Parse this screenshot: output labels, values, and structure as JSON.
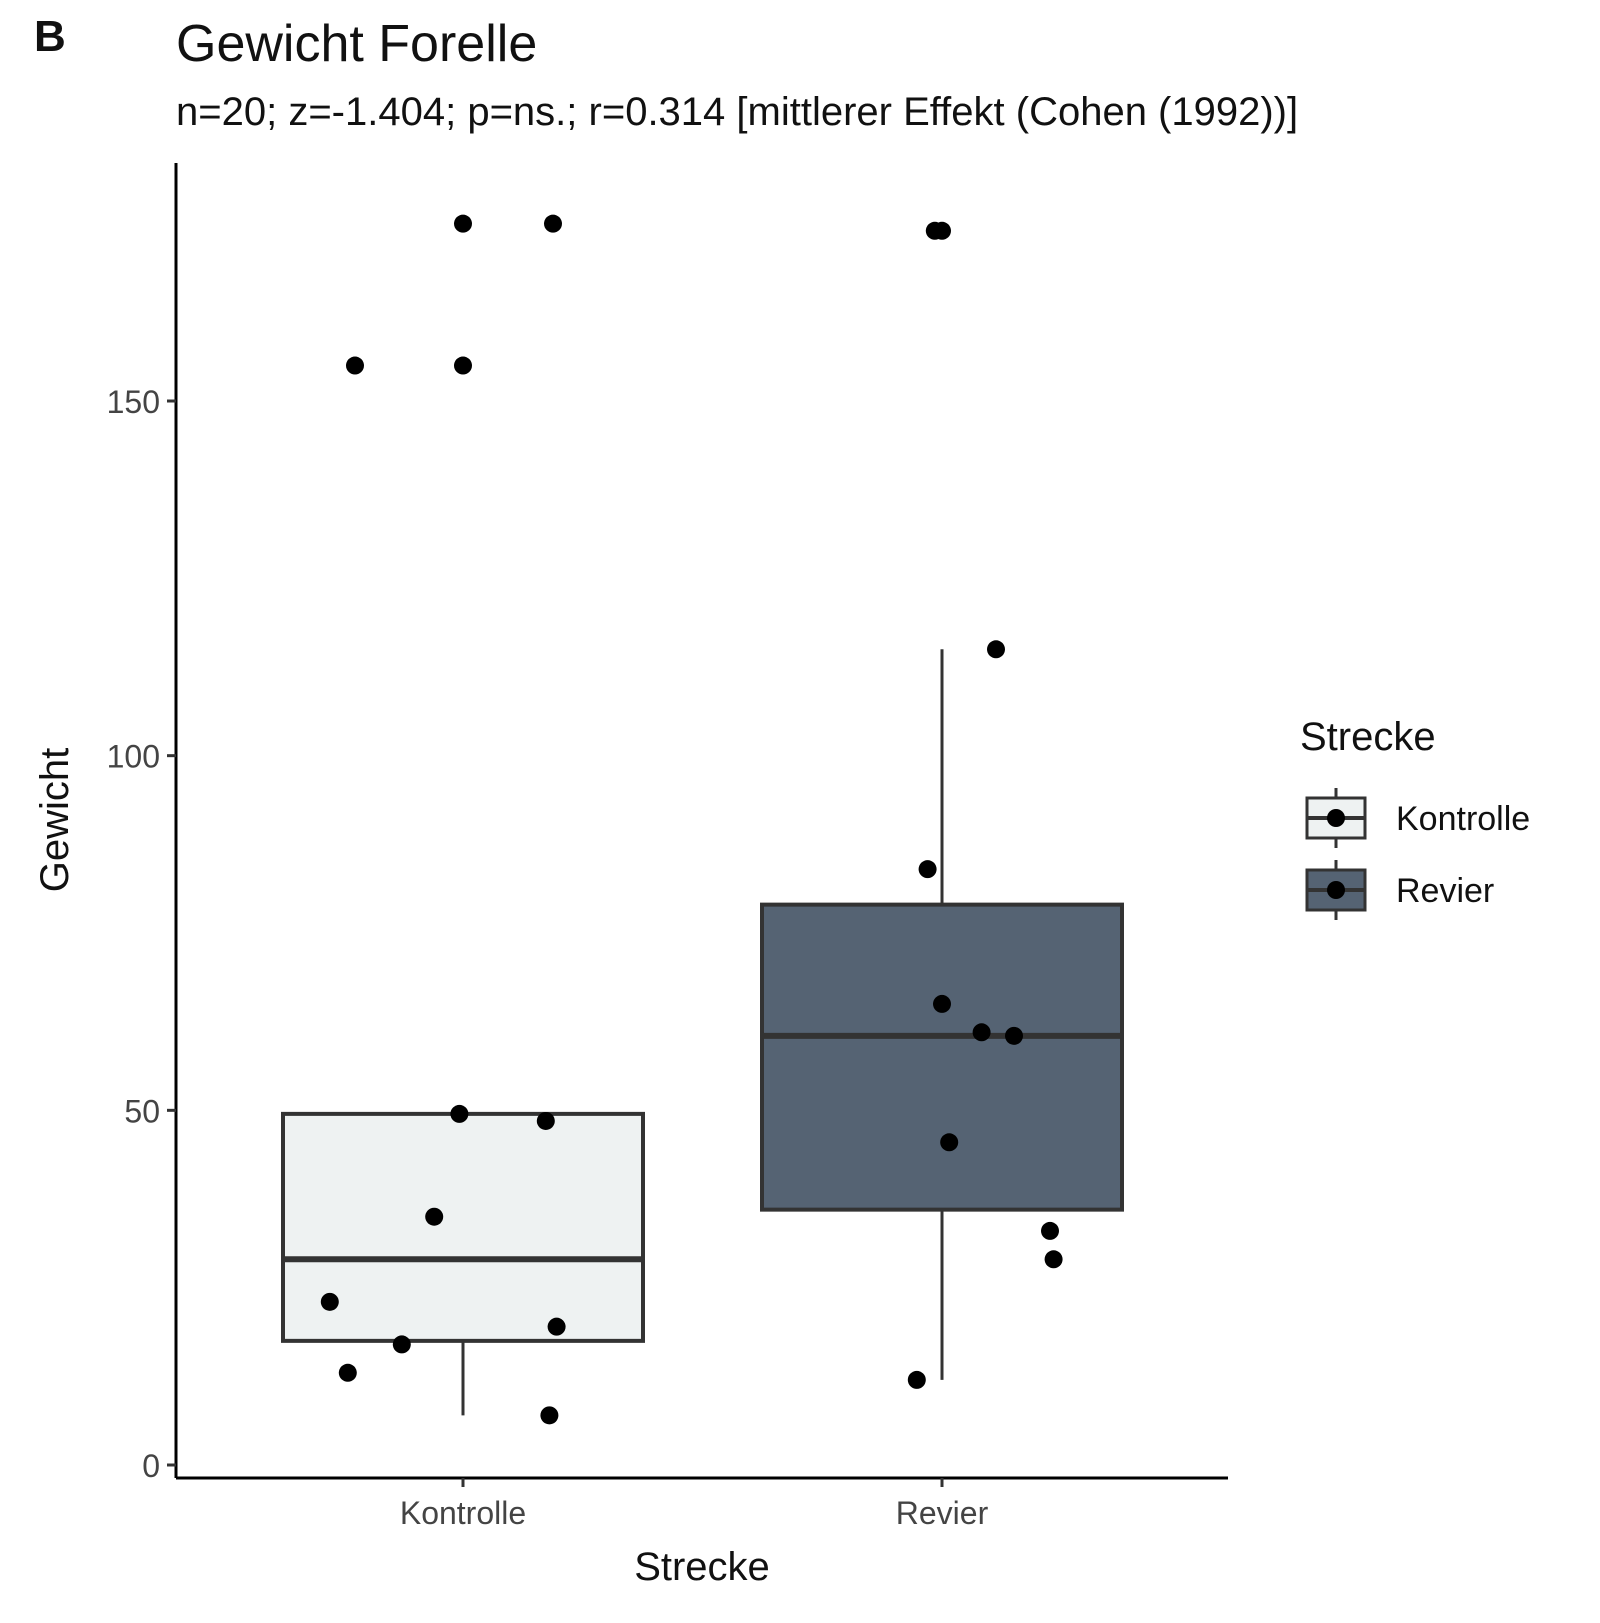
{
  "panel_label": "B",
  "chart_data": {
    "type": "boxplot",
    "title": "Gewicht Forelle",
    "subtitle": "n=20; z=-1.404; p=ns.; r=0.314 [mittlerer Effekt (Cohen (1992))]",
    "xlabel": "Strecke",
    "ylabel": "Gewicht",
    "ylim": [
      -2,
      182
    ],
    "yticks": [
      0,
      50,
      100,
      150
    ],
    "categories": [
      "Kontrolle",
      "Revier"
    ],
    "legend": {
      "title": "Strecke",
      "position": "right",
      "entries": [
        "Kontrolle",
        "Revier"
      ]
    },
    "colors": {
      "Kontrolle": "#eef2f2",
      "Revier": "#556373",
      "outline": "#333333",
      "points": "#000000"
    },
    "boxes": [
      {
        "category": "Kontrolle",
        "whisker_low": 7,
        "q1": 17.5,
        "median": 29,
        "q3": 49.5,
        "whisker_high": 49.5,
        "outliers": [
          155,
          155,
          175,
          175
        ]
      },
      {
        "category": "Revier",
        "whisker_low": 12,
        "q1": 36,
        "median": 60.5,
        "q3": 79,
        "whisker_high": 115,
        "outliers": [
          174,
          174
        ]
      }
    ],
    "points": [
      {
        "category": "Kontrolle",
        "jitter": 0.0,
        "y": 175
      },
      {
        "category": "Kontrolle",
        "jitter": 0.25,
        "y": 175
      },
      {
        "category": "Kontrolle",
        "jitter": -0.3,
        "y": 155
      },
      {
        "category": "Kontrolle",
        "jitter": 0.0,
        "y": 155
      },
      {
        "category": "Kontrolle",
        "jitter": -0.01,
        "y": 49.5
      },
      {
        "category": "Kontrolle",
        "jitter": 0.23,
        "y": 48.5
      },
      {
        "category": "Kontrolle",
        "jitter": -0.08,
        "y": 35
      },
      {
        "category": "Kontrolle",
        "jitter": -0.37,
        "y": 23
      },
      {
        "category": "Kontrolle",
        "jitter": 0.26,
        "y": 19.5
      },
      {
        "category": "Kontrolle",
        "jitter": -0.17,
        "y": 17
      },
      {
        "category": "Kontrolle",
        "jitter": -0.32,
        "y": 13
      },
      {
        "category": "Kontrolle",
        "jitter": 0.24,
        "y": 7
      },
      {
        "category": "Revier",
        "jitter": -0.02,
        "y": 174
      },
      {
        "category": "Revier",
        "jitter": 0.0,
        "y": 174
      },
      {
        "category": "Revier",
        "jitter": 0.15,
        "y": 115
      },
      {
        "category": "Revier",
        "jitter": -0.04,
        "y": 84
      },
      {
        "category": "Revier",
        "jitter": 0.0,
        "y": 65
      },
      {
        "category": "Revier",
        "jitter": 0.11,
        "y": 61
      },
      {
        "category": "Revier",
        "jitter": 0.2,
        "y": 60.5
      },
      {
        "category": "Revier",
        "jitter": 0.02,
        "y": 45.5
      },
      {
        "category": "Revier",
        "jitter": 0.3,
        "y": 33
      },
      {
        "category": "Revier",
        "jitter": 0.31,
        "y": 29
      },
      {
        "category": "Revier",
        "jitter": -0.07,
        "y": 12
      }
    ]
  }
}
